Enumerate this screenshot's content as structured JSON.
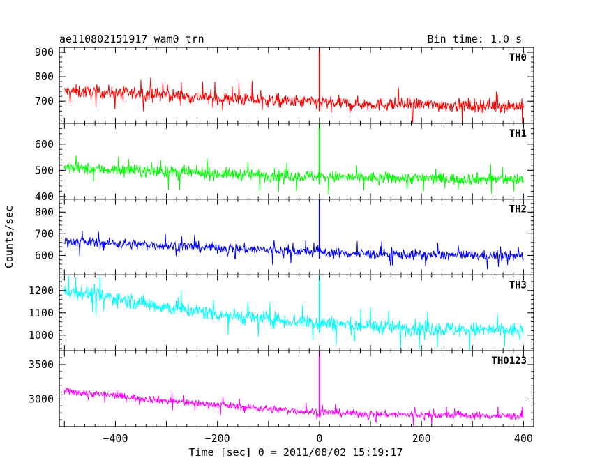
{
  "chart_data": {
    "type": "line",
    "title": "ae110802151917_wam0_trn",
    "bin_time_label": "Bin time: 1.0 s",
    "xlabel": "Time [sec] 0 = 2011/08/02 15:19:17",
    "ylabel": "Counts/sec",
    "xlim": [
      -510,
      420
    ],
    "x_ticks": [
      -400,
      -200,
      0,
      200,
      400
    ],
    "x_tick_labels": [
      "−400",
      "−200",
      "0",
      "200",
      "400"
    ],
    "series": [
      {
        "name": "TH0",
        "color": "#ff0000",
        "ylim": [
          610,
          920
        ],
        "y_ticks": [
          700,
          800,
          900
        ],
        "y_tick_labels": [
          "700",
          "800",
          "900"
        ],
        "x": [
          -500,
          -450,
          -400,
          -350,
          -300,
          -250,
          -200,
          -150,
          -100,
          -50,
          0,
          50,
          100,
          150,
          200,
          250,
          300,
          350,
          400
        ],
        "values": [
          740,
          738,
          735,
          730,
          725,
          718,
          712,
          708,
          703,
          698,
          695,
          690,
          688,
          687,
          686,
          684,
          683,
          682,
          680
        ],
        "noise": 35,
        "spike": {
          "x": 0,
          "value": 920
        }
      },
      {
        "name": "TH1",
        "color": "#00ff00",
        "ylim": [
          390,
          680
        ],
        "y_ticks": [
          400,
          500,
          600
        ],
        "y_tick_labels": [
          "400",
          "500",
          "600"
        ],
        "x": [
          -500,
          -450,
          -400,
          -350,
          -300,
          -250,
          -200,
          -150,
          -100,
          -50,
          0,
          50,
          100,
          150,
          200,
          250,
          300,
          350,
          400
        ],
        "values": [
          510,
          505,
          502,
          498,
          495,
          490,
          487,
          484,
          481,
          478,
          476,
          473,
          471,
          470,
          469,
          468,
          467,
          466,
          465
        ],
        "noise": 30,
        "spike": {
          "x": 0,
          "value": 680
        }
      },
      {
        "name": "TH2",
        "color": "#0000ff",
        "ylim": [
          510,
          860
        ],
        "y_ticks": [
          600,
          700,
          800
        ],
        "y_tick_labels": [
          "600",
          "700",
          "800"
        ],
        "x": [
          -500,
          -450,
          -400,
          -350,
          -300,
          -250,
          -200,
          -150,
          -100,
          -50,
          0,
          50,
          100,
          150,
          200,
          250,
          300,
          350,
          400
        ],
        "values": [
          665,
          660,
          655,
          650,
          645,
          640,
          635,
          630,
          625,
          620,
          615,
          610,
          607,
          605,
          603,
          601,
          600,
          598,
          596
        ],
        "noise": 30,
        "spike": {
          "x": 0,
          "value": 860
        }
      },
      {
        "name": "TH3",
        "color": "#00ffff",
        "ylim": [
          930,
          1270
        ],
        "y_ticks": [
          1000,
          1100,
          1200
        ],
        "y_tick_labels": [
          "1000",
          "1100",
          "1200"
        ],
        "x": [
          -500,
          -450,
          -400,
          -350,
          -300,
          -250,
          -200,
          -150,
          -100,
          -50,
          0,
          50,
          100,
          150,
          200,
          250,
          300,
          350,
          400
        ],
        "values": [
          1200,
          1185,
          1165,
          1145,
          1125,
          1110,
          1095,
          1082,
          1072,
          1063,
          1055,
          1047,
          1040,
          1035,
          1030,
          1027,
          1024,
          1022,
          1020
        ],
        "noise": 45,
        "spike": {
          "x": 0,
          "value": 1270
        }
      },
      {
        "name": "TH0123",
        "color": "#ff00ff",
        "ylim": [
          2600,
          3700
        ],
        "y_ticks": [
          3000,
          3500
        ],
        "y_tick_labels": [
          "3000",
          "3500"
        ],
        "x": [
          -500,
          -450,
          -400,
          -350,
          -300,
          -250,
          -200,
          -150,
          -100,
          -50,
          0,
          50,
          100,
          150,
          200,
          250,
          300,
          350,
          400
        ],
        "values": [
          3110,
          3080,
          3050,
          3010,
          2975,
          2945,
          2915,
          2885,
          2855,
          2830,
          2810,
          2795,
          2782,
          2775,
          2770,
          2765,
          2760,
          2755,
          2752
        ],
        "noise": 70,
        "spike": {
          "x": 0,
          "value": 3700
        }
      }
    ],
    "grid": false,
    "legend": "none"
  }
}
